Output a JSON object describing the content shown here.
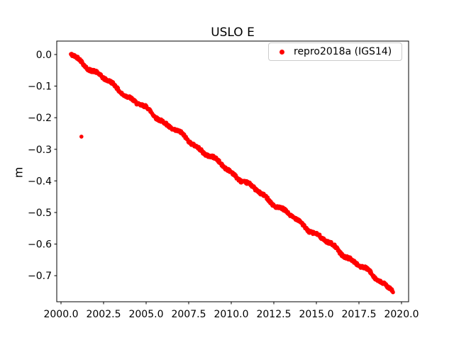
{
  "figure": {
    "background": "#ffffff",
    "frame_color": "#000000",
    "text_color": "#000000"
  },
  "chart_data": {
    "type": "scatter",
    "title": "USLO E",
    "xlabel": "",
    "ylabel": "m",
    "grid": false,
    "marker": ".",
    "markersize": 6,
    "xlim": [
      1999.75,
      2020.417
    ],
    "ylim": [
      -0.7825,
      0.0425
    ],
    "xticks": {
      "values": [
        2000.0,
        2002.5,
        2005.0,
        2007.5,
        2010.0,
        2012.5,
        2015.0,
        2017.5,
        2020.0
      ],
      "labels": [
        "2000.0",
        "2002.5",
        "2005.0",
        "2007.5",
        "2010.0",
        "2012.5",
        "2015.0",
        "2017.5",
        "2020.0"
      ]
    },
    "yticks": {
      "values": [
        0.0,
        -0.1,
        -0.2,
        -0.3,
        -0.4,
        -0.5,
        -0.6,
        -0.7
      ],
      "labels": [
        "0.0",
        "−0.1",
        "−0.2",
        "−0.3",
        "−0.4",
        "−0.5",
        "−0.6",
        "−0.7"
      ]
    },
    "legend_position": "upper right",
    "legend": [
      {
        "label": "repro2018a (IGS14)",
        "color": "#ff0000",
        "marker": "dot"
      }
    ],
    "series": [
      {
        "name": "repro2018a (IGS14)",
        "color": "#ff0000",
        "dense_daily_band": true,
        "points": [
          [
            2000.58,
            0.0
          ],
          [
            2001.0,
            -0.015
          ],
          [
            2001.5,
            -0.036
          ],
          [
            2002.0,
            -0.055
          ],
          [
            2002.5,
            -0.075
          ],
          [
            2003.0,
            -0.095
          ],
          [
            2003.5,
            -0.115
          ],
          [
            2004.0,
            -0.135
          ],
          [
            2004.5,
            -0.155
          ],
          [
            2005.0,
            -0.172
          ],
          [
            2005.5,
            -0.192
          ],
          [
            2006.0,
            -0.212
          ],
          [
            2006.5,
            -0.232
          ],
          [
            2007.0,
            -0.252
          ],
          [
            2007.5,
            -0.272
          ],
          [
            2008.0,
            -0.292
          ],
          [
            2008.5,
            -0.312
          ],
          [
            2009.0,
            -0.332
          ],
          [
            2009.5,
            -0.352
          ],
          [
            2010.0,
            -0.372
          ],
          [
            2010.5,
            -0.392
          ],
          [
            2011.0,
            -0.412
          ],
          [
            2011.5,
            -0.431
          ],
          [
            2012.0,
            -0.451
          ],
          [
            2012.5,
            -0.471
          ],
          [
            2013.0,
            -0.491
          ],
          [
            2013.5,
            -0.511
          ],
          [
            2014.0,
            -0.53
          ],
          [
            2014.5,
            -0.55
          ],
          [
            2015.0,
            -0.569
          ],
          [
            2015.5,
            -0.589
          ],
          [
            2016.0,
            -0.608
          ],
          [
            2016.5,
            -0.628
          ],
          [
            2017.0,
            -0.647
          ],
          [
            2017.5,
            -0.667
          ],
          [
            2018.0,
            -0.686
          ],
          [
            2018.5,
            -0.706
          ],
          [
            2019.0,
            -0.726
          ],
          [
            2019.5,
            -0.745
          ]
        ]
      }
    ],
    "outliers": [
      [
        2001.2,
        -0.26
      ]
    ]
  }
}
